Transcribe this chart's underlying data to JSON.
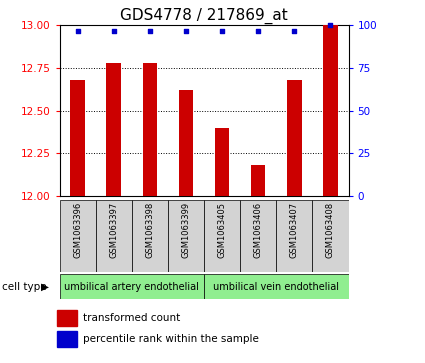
{
  "title": "GDS4778 / 217869_at",
  "samples": [
    "GSM1063396",
    "GSM1063397",
    "GSM1063398",
    "GSM1063399",
    "GSM1063405",
    "GSM1063406",
    "GSM1063407",
    "GSM1063408"
  ],
  "bar_values": [
    12.68,
    12.78,
    12.78,
    12.62,
    12.4,
    12.18,
    12.68,
    13.0
  ],
  "percentile_values": [
    97,
    97,
    97,
    97,
    97,
    97,
    97,
    100
  ],
  "ylim_left": [
    12,
    13
  ],
  "ylim_right": [
    0,
    100
  ],
  "yticks_left": [
    12,
    12.25,
    12.5,
    12.75,
    13
  ],
  "yticks_right": [
    0,
    25,
    50,
    75,
    100
  ],
  "bar_color": "#cc0000",
  "dot_color": "#0000cc",
  "cell_types": [
    {
      "label": "umbilical artery endothelial",
      "start": 0,
      "end": 3
    },
    {
      "label": "umbilical vein endothelial",
      "start": 4,
      "end": 7
    }
  ],
  "cell_type_label": "cell type",
  "legend_bar_label": "transformed count",
  "legend_dot_label": "percentile rank within the sample",
  "bar_width": 0.4,
  "title_fontsize": 11,
  "grid_ticks": [
    12.25,
    12.5,
    12.75
  ]
}
